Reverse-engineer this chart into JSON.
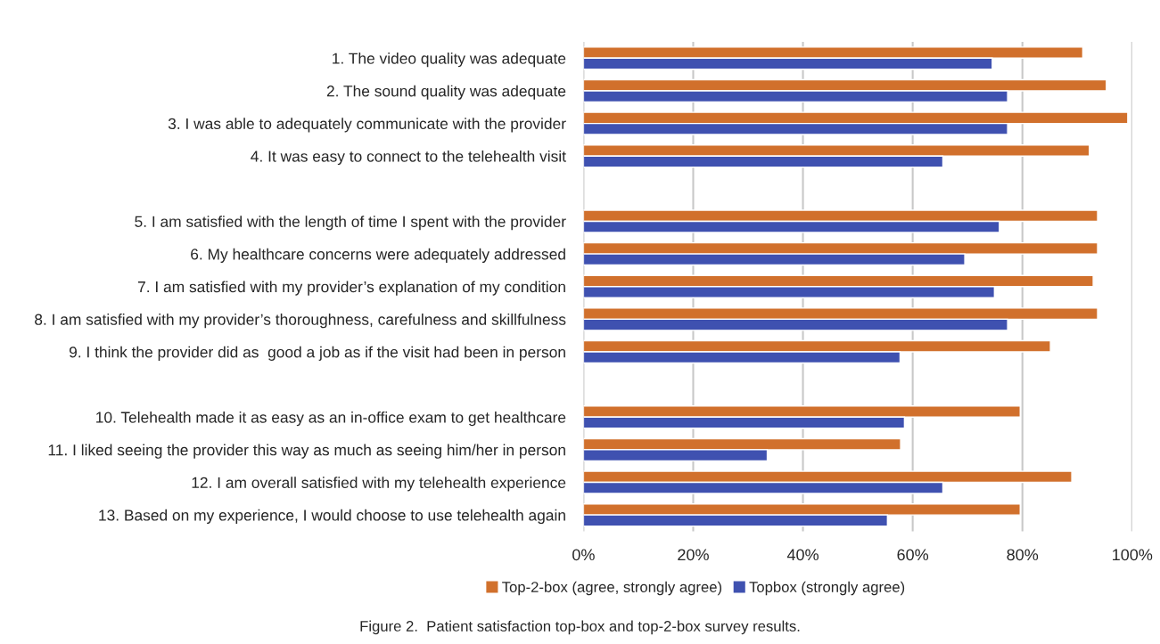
{
  "chart_data": {
    "type": "bar",
    "orientation": "horizontal",
    "categories": [
      "1. The video quality was adequate",
      "2. The sound quality was adequate",
      "3. I was able to adequately communicate with the provider",
      "4. It was easy to connect to the telehealth visit",
      null,
      "5. I am satisfied with the length of time I spent with the provider",
      "6. My healthcare concerns were adequately addressed",
      "7. I am satisfied with my provider’s explanation of my condition",
      "8. I am satisfied with my provider’s thoroughness, carefulness and skillfulness",
      "9. I think the provider did as  good a job as if the visit had been in person",
      null,
      "10. Telehealth made it as easy as an in-office exam to get healthcare",
      "11. I liked seeing the provider this way as much as seeing him/her in person",
      "12. I am overall satisfied with my telehealth experience",
      "13. Based on my experience, I would choose to use telehealth again"
    ],
    "series": [
      {
        "name": "Top-2-box (agree, strongly agree)",
        "color": "#d1702c",
        "values": [
          91.0,
          95.3,
          99.2,
          92.2,
          null,
          93.7,
          93.7,
          92.9,
          93.7,
          85.1,
          null,
          79.6,
          57.8,
          89.0,
          79.6
        ]
      },
      {
        "name": "Topbox (strongly agree)",
        "color": "#3f51b0",
        "values": [
          74.5,
          77.3,
          77.3,
          65.5,
          null,
          75.8,
          69.5,
          74.9,
          77.3,
          57.7,
          null,
          58.5,
          33.5,
          65.5,
          55.4
        ]
      }
    ],
    "xlim": [
      0,
      100
    ],
    "xticks": [
      {
        "value": 0,
        "label": "0%"
      },
      {
        "value": 20,
        "label": "20%"
      },
      {
        "value": 40,
        "label": "40%"
      },
      {
        "value": 60,
        "label": "60%"
      },
      {
        "value": 80,
        "label": "80%"
      },
      {
        "value": 100,
        "label": "100%"
      }
    ],
    "grid": "x",
    "legend": "bottom",
    "annotations": [
      "Figure 2.  Patient satisfaction top-box and top-2-box survey results."
    ]
  }
}
